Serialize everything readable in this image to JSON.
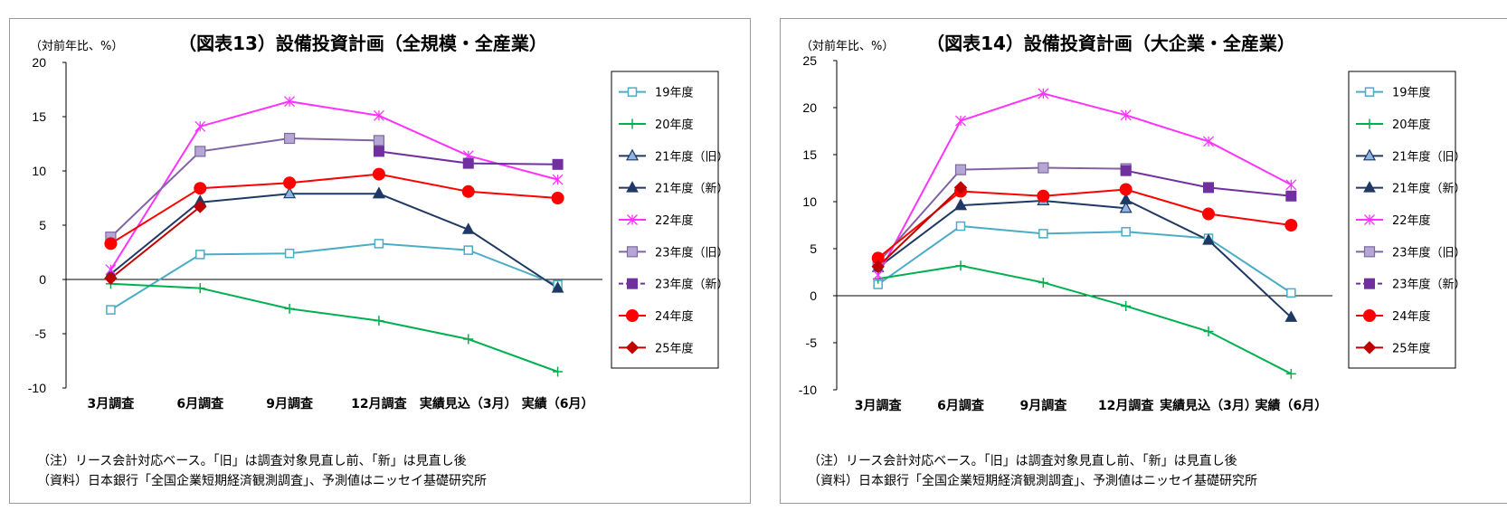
{
  "chart_data": [
    {
      "type": "line",
      "title": "（図表13）設備投資計画（全規模・全産業）",
      "ylabel": "（対前年比、%）",
      "categories": [
        "3月調査",
        "6月調査",
        "9月調査",
        "12月調査",
        "実績見込（3月）",
        "実績（6月）"
      ],
      "ylim": [
        -10,
        20
      ],
      "yticks": [
        "20",
        "15",
        "10",
        "5",
        "0",
        "-5",
        "-10"
      ],
      "grid": false,
      "legend_position": "right",
      "series": [
        {
          "name": "19年度",
          "values": [
            -2.8,
            2.3,
            2.4,
            3.3,
            2.7,
            -0.5
          ],
          "color": "#4bacc6",
          "marker": "square-open"
        },
        {
          "name": "20年度",
          "values": [
            -0.4,
            -0.8,
            -2.7,
            -3.8,
            -5.5,
            -8.5
          ],
          "color": "#00b050",
          "marker": "plus"
        },
        {
          "name": "21年度（旧）",
          "values": [
            null,
            7.1,
            7.9,
            7.9,
            null,
            null
          ],
          "color": "#1f3864",
          "marker": "triangle-blue"
        },
        {
          "name": "21年度（新）",
          "values": [
            0.5,
            7.2,
            null,
            7.9,
            4.6,
            -0.8
          ],
          "color": "#1f3864",
          "marker": "triangle"
        },
        {
          "name": "22年度",
          "values": [
            0.9,
            14.1,
            16.4,
            15.1,
            11.4,
            9.2
          ],
          "color": "#ff33ff",
          "marker": "x"
        },
        {
          "name": "23年度（旧）",
          "values": [
            3.9,
            11.8,
            13.0,
            12.8,
            null,
            null
          ],
          "color": "#8064a2",
          "marker": "square-light"
        },
        {
          "name": "23年度（新）",
          "values": [
            null,
            null,
            null,
            11.8,
            10.7,
            10.6
          ],
          "color": "#7030a0",
          "marker": "square"
        },
        {
          "name": "24年度",
          "values": [
            3.3,
            8.4,
            8.9,
            9.7,
            8.1,
            7.5
          ],
          "color": "#ff0000",
          "marker": "circle"
        },
        {
          "name": "25年度",
          "values": [
            0.1,
            6.7,
            null,
            null,
            null,
            null
          ],
          "color": "#c00000",
          "marker": "diamond"
        }
      ],
      "notes": [
        "（注）リース会計対応ベース。「旧」は調査対象見直し前、「新」は見直し後",
        "（資料）日本銀行「全国企業短期経済観測調査」、予測値はニッセイ基礎研究所"
      ]
    },
    {
      "type": "line",
      "title": "（図表14）設備投資計画（大企業・全産業）",
      "ylabel": "（対前年比、%）",
      "categories": [
        "3月調査",
        "6月調査",
        "9月調査",
        "12月調査",
        "実績見込（3月）",
        "実績（6月）"
      ],
      "ylim": [
        -10,
        25
      ],
      "yticks": [
        "25",
        "20",
        "15",
        "10",
        "5",
        "0",
        "-5",
        "-10"
      ],
      "grid": false,
      "legend_position": "right",
      "series": [
        {
          "name": "19年度",
          "values": [
            1.2,
            7.4,
            6.6,
            6.8,
            6.1,
            0.3
          ],
          "color": "#4bacc6",
          "marker": "square-open"
        },
        {
          "name": "20年度",
          "values": [
            1.8,
            3.2,
            1.4,
            -1.1,
            -3.8,
            -8.3
          ],
          "color": "#00b050",
          "marker": "plus"
        },
        {
          "name": "21年度（旧）",
          "values": [
            null,
            9.6,
            10.1,
            9.3,
            null,
            null
          ],
          "color": "#1f3864",
          "marker": "triangle-blue"
        },
        {
          "name": "21年度（新）",
          "values": [
            3.0,
            9.6,
            null,
            10.2,
            5.9,
            -2.3
          ],
          "color": "#1f3864",
          "marker": "triangle"
        },
        {
          "name": "22年度",
          "values": [
            2.2,
            18.6,
            21.5,
            19.2,
            16.4,
            11.8
          ],
          "color": "#ff33ff",
          "marker": "x"
        },
        {
          "name": "23年度（旧）",
          "values": [
            3.5,
            13.4,
            13.6,
            13.5,
            null,
            null
          ],
          "color": "#8064a2",
          "marker": "square-light"
        },
        {
          "name": "23年度（新）",
          "values": [
            null,
            null,
            null,
            13.3,
            11.5,
            10.6
          ],
          "color": "#7030a0",
          "marker": "square"
        },
        {
          "name": "24年度",
          "values": [
            4.0,
            11.1,
            10.6,
            11.3,
            8.7,
            7.5
          ],
          "color": "#ff0000",
          "marker": "circle"
        },
        {
          "name": "25年度",
          "values": [
            3.1,
            11.5,
            null,
            null,
            null,
            null
          ],
          "color": "#c00000",
          "marker": "diamond"
        }
      ],
      "notes": [
        "（注）リース会計対応ベース。「旧」は調査対象見直し前、「新」は見直し後",
        "（資料）日本銀行「全国企業短期経済観測調査」、予測値はニッセイ基礎研究所"
      ]
    }
  ]
}
